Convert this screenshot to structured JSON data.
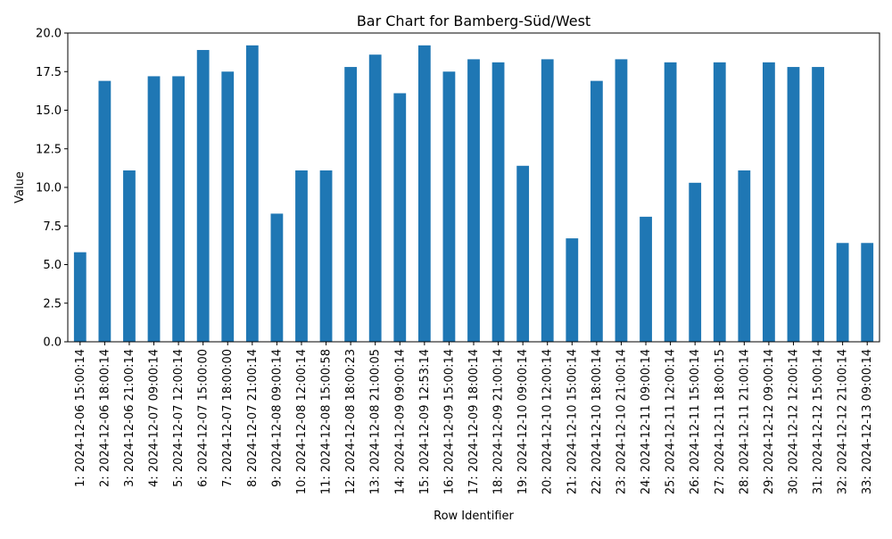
{
  "chart_data": {
    "type": "bar",
    "title": "Bar Chart for Bamberg-Süd/West",
    "xlabel": "Row Identifier",
    "ylabel": "Value",
    "ylim": [
      0,
      20
    ],
    "yticks": [
      "0.0",
      "2.5",
      "5.0",
      "7.5",
      "10.0",
      "12.5",
      "15.0",
      "17.5",
      "20.0"
    ],
    "grid": false,
    "bar_color": "#1f77b4",
    "categories": [
      "1: 2024-12-06 15:00:14",
      "2: 2024-12-06 18:00:14",
      "3: 2024-12-06 21:00:14",
      "4: 2024-12-07 09:00:14",
      "5: 2024-12-07 12:00:14",
      "6: 2024-12-07 15:00:00",
      "7: 2024-12-07 18:00:00",
      "8: 2024-12-07 21:00:14",
      "9: 2024-12-08 09:00:14",
      "10: 2024-12-08 12:00:14",
      "11: 2024-12-08 15:00:58",
      "12: 2024-12-08 18:00:23",
      "13: 2024-12-08 21:00:05",
      "14: 2024-12-09 09:00:14",
      "15: 2024-12-09 12:53:14",
      "16: 2024-12-09 15:00:14",
      "17: 2024-12-09 18:00:14",
      "18: 2024-12-09 21:00:14",
      "19: 2024-12-10 09:00:14",
      "20: 2024-12-10 12:00:14",
      "21: 2024-12-10 15:00:14",
      "22: 2024-12-10 18:00:14",
      "23: 2024-12-10 21:00:14",
      "24: 2024-12-11 09:00:14",
      "25: 2024-12-11 12:00:14",
      "26: 2024-12-11 15:00:14",
      "27: 2024-12-11 18:00:15",
      "28: 2024-12-11 21:00:14",
      "29: 2024-12-12 09:00:14",
      "30: 2024-12-12 12:00:14",
      "31: 2024-12-12 15:00:14",
      "32: 2024-12-12 21:00:14",
      "33: 2024-12-13 09:00:14"
    ],
    "values": [
      5.8,
      16.9,
      11.1,
      17.2,
      17.2,
      18.9,
      17.5,
      19.2,
      8.3,
      11.1,
      11.1,
      17.8,
      18.6,
      16.1,
      19.2,
      17.5,
      18.3,
      18.1,
      11.4,
      18.3,
      6.7,
      16.9,
      18.3,
      8.1,
      18.1,
      10.3,
      18.1,
      11.1,
      18.1,
      17.8,
      17.8,
      6.4,
      6.4
    ]
  }
}
